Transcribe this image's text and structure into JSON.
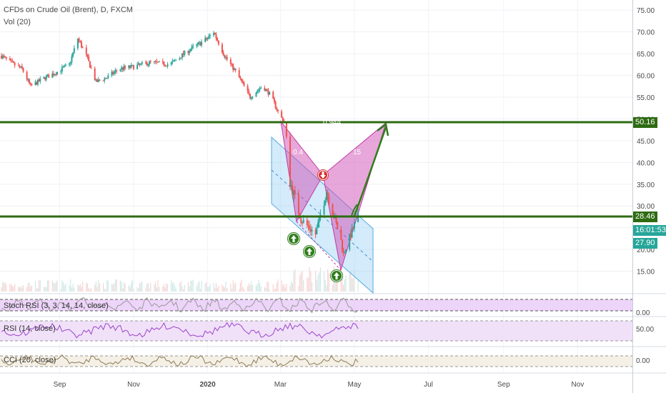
{
  "header": {
    "symbol_title": "CFDs on Crude Oil (Brent), D, FXCM",
    "volume_label": "Vol (20)"
  },
  "price_scale": {
    "ticks": [
      "75.00",
      "70.00",
      "65.00",
      "60.00",
      "55.00",
      "50.00",
      "45.00",
      "40.00",
      "35.00",
      "30.00",
      "25.00",
      "20.00",
      "15.00"
    ],
    "tag_upper": "50.16",
    "tag_lower": "28.46",
    "tag_countdown": "16:01:53",
    "tag_last": "27.90"
  },
  "time_axis": {
    "labels": [
      "Sep",
      "Nov",
      "2020",
      "Mar",
      "May",
      "Jul",
      "Sep",
      "Nov"
    ]
  },
  "panes": {
    "stoch_label": "Stoch RSI (3, 3, 14, 14, close)",
    "stoch_tick": "0.00",
    "rsi_label": "RSI (14, close)",
    "rsi_tick": "50.00",
    "cci_label": "CCI (20, close)",
    "cci_tick": "0.00"
  },
  "pattern_labels": {
    "xb_ratio": "0.944",
    "ac_ratio": "0.4",
    "bd_ratio": "15"
  },
  "colors": {
    "up": "#26a69a",
    "down": "#ef5350",
    "level_line": "#2e6b12",
    "pattern_fill": "#cf4fb5",
    "channel_fill": "#9ed3f5",
    "arrow": "#2e7d1a",
    "stoch_fill": "#e7c6f7",
    "rsi_fill": "#ecd9f7"
  },
  "chart_data": {
    "type": "candlestick",
    "y_scale": "linear",
    "ylim": [
      10,
      77
    ],
    "x_range": [
      "2019-07-15",
      "2020-12-15"
    ],
    "horizontal_levels": [
      50.16,
      28.46
    ],
    "last_price": 27.9,
    "series_close_points": [
      [
        "2019-07-15",
        64.5
      ],
      [
        "2019-07-22",
        63.0
      ],
      [
        "2019-08-01",
        61.5
      ],
      [
        "2019-08-08",
        57.5
      ],
      [
        "2019-08-20",
        59.5
      ],
      [
        "2019-08-28",
        60.5
      ],
      [
        "2019-09-09",
        62.5
      ],
      [
        "2019-09-16",
        68.5
      ],
      [
        "2019-09-23",
        64.5
      ],
      [
        "2019-10-01",
        58.5
      ],
      [
        "2019-10-10",
        59.5
      ],
      [
        "2019-10-20",
        61.5
      ],
      [
        "2019-11-01",
        62.0
      ],
      [
        "2019-11-15",
        63.0
      ],
      [
        "2019-12-01",
        62.5
      ],
      [
        "2019-12-15",
        65.5
      ],
      [
        "2020-01-01",
        68.5
      ],
      [
        "2020-01-06",
        70.0
      ],
      [
        "2020-01-15",
        64.5
      ],
      [
        "2020-01-25",
        60.5
      ],
      [
        "2020-02-05",
        55.0
      ],
      [
        "2020-02-15",
        57.5
      ],
      [
        "2020-02-22",
        55.5
      ],
      [
        "2020-02-29",
        51.0
      ],
      [
        "2020-03-05",
        49.0
      ],
      [
        "2020-03-09",
        35.5
      ],
      [
        "2020-03-18",
        27.0
      ],
      [
        "2020-03-30",
        23.5
      ],
      [
        "2020-04-08",
        33.5
      ],
      [
        "2020-04-20",
        22.0
      ],
      [
        "2020-04-22",
        19.0
      ],
      [
        "2020-05-04",
        27.9
      ]
    ]
  }
}
